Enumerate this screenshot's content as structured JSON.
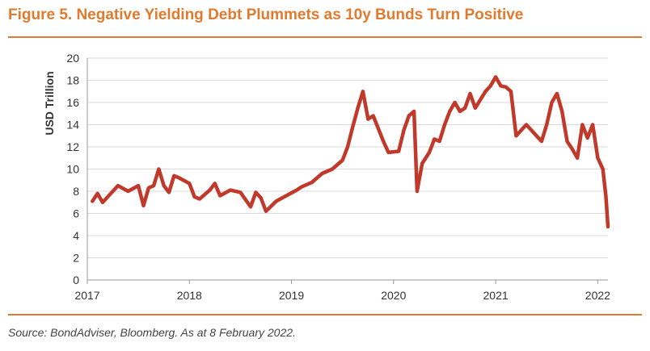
{
  "header": {
    "title": "Figure 5. Negative Yielding Debt Plummets as 10y Bunds Turn Positive"
  },
  "footer": {
    "source": "Source: BondAdviser, Bloomberg. As at 8 February 2022."
  },
  "colors": {
    "accent": "#e07a2f",
    "line": "#c0392b",
    "grid": "#d9d9d9"
  },
  "chart_data": {
    "type": "line",
    "title": "",
    "xlabel": "",
    "ylabel": "USD Trillion",
    "xlim": [
      2017.0,
      2022.1
    ],
    "ylim": [
      0,
      20
    ],
    "grid": true,
    "legend": "none",
    "x_ticks": [
      "2017",
      "2018",
      "2019",
      "2020",
      "2021",
      "2022"
    ],
    "y_ticks": [
      "0",
      "2",
      "4",
      "6",
      "8",
      "10",
      "12",
      "14",
      "16",
      "18",
      "20"
    ],
    "series": [
      {
        "x": [
          2017.05,
          2017.1,
          2017.15,
          2017.2,
          2017.3,
          2017.4,
          2017.5,
          2017.55,
          2017.6,
          2017.65,
          2017.7,
          2017.75,
          2017.8,
          2017.85,
          2017.9,
          2018.0,
          2018.05,
          2018.1,
          2018.2,
          2018.25,
          2018.3,
          2018.4,
          2018.5,
          2018.6,
          2018.65,
          2018.7,
          2018.75,
          2018.85,
          2018.95,
          2019.05,
          2019.1,
          2019.2,
          2019.3,
          2019.4,
          2019.5,
          2019.55,
          2019.6,
          2019.65,
          2019.7,
          2019.75,
          2019.8,
          2019.9,
          2019.95,
          2020.05,
          2020.1,
          2020.15,
          2020.2,
          2020.23,
          2020.28,
          2020.35,
          2020.4,
          2020.45,
          2020.5,
          2020.55,
          2020.6,
          2020.65,
          2020.7,
          2020.75,
          2020.8,
          2020.9,
          2020.95,
          2021.0,
          2021.05,
          2021.1,
          2021.15,
          2021.2,
          2021.3,
          2021.35,
          2021.4,
          2021.45,
          2021.5,
          2021.55,
          2021.6,
          2021.65,
          2021.7,
          2021.75,
          2021.8,
          2021.85,
          2021.9,
          2021.95,
          2022.0,
          2022.05,
          2022.08,
          2022.1
        ],
        "values": [
          7.1,
          7.8,
          7.0,
          7.5,
          8.5,
          8.0,
          8.5,
          6.7,
          8.3,
          8.5,
          10.0,
          8.5,
          7.9,
          9.4,
          9.2,
          8.7,
          7.5,
          7.3,
          8.1,
          8.7,
          7.6,
          8.1,
          7.9,
          6.6,
          7.9,
          7.4,
          6.2,
          7.1,
          7.6,
          8.1,
          8.4,
          8.8,
          9.6,
          10.0,
          10.8,
          12.0,
          13.8,
          15.5,
          17.0,
          14.5,
          14.8,
          12.5,
          11.5,
          11.6,
          13.5,
          14.8,
          15.2,
          8.0,
          10.5,
          11.5,
          12.7,
          12.5,
          14.0,
          15.2,
          16.0,
          15.2,
          15.5,
          16.8,
          15.5,
          17.0,
          17.5,
          18.3,
          17.5,
          17.4,
          17.0,
          13.0,
          14.0,
          13.5,
          13.0,
          12.5,
          14.0,
          16.0,
          16.8,
          15.2,
          12.5,
          11.8,
          11.0,
          14.0,
          12.8,
          14.0,
          11.0,
          10.0,
          7.5,
          4.8
        ]
      }
    ]
  }
}
